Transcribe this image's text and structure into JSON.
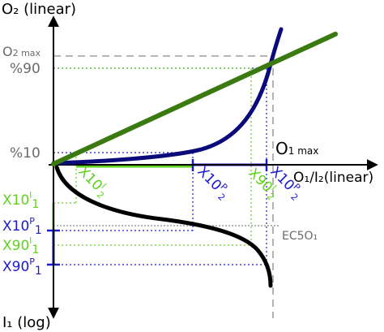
{
  "axes": {
    "y_axis_label": "O₂ (linear)",
    "x_axis_label": "O₁/I₂(linear)",
    "y_axis_bottom_label": "I₁ (log)"
  },
  "markers": {
    "o2max_prefix": "O",
    "o2max_sub": "2 max",
    "pct90": "%90",
    "pct10": "%10",
    "o1max_prefix": "O",
    "o1max_sub": "1 max",
    "ec50": "EC5O₁"
  },
  "threshold_labels": {
    "x10_l2": {
      "base": "X10",
      "sup": "l",
      "sub": "2"
    },
    "x10_p2": {
      "base": "X10",
      "sup": "P",
      "sub": "2"
    },
    "x90_l2": {
      "base": "X90",
      "sup": "l",
      "sub": "2"
    },
    "x10_p2_right": {
      "base": "X10",
      "sup": "P",
      "sub": "2"
    },
    "x10_l1": {
      "base": "X10",
      "sup": "l",
      "sub": "1"
    },
    "x10_p1": {
      "base": "X10",
      "sup": "P",
      "sub": "1"
    },
    "x90_l1": {
      "base": "X90",
      "sup": "l",
      "sub": "1"
    },
    "x90_p1": {
      "base": "X90",
      "sup": "P",
      "sub": "1"
    }
  },
  "colors": {
    "linear": "#3a7a10",
    "linear_range": "#5fd21e",
    "logistic": "#0a0a7a",
    "logistic_range": "#1a1ad0",
    "black": "#000000",
    "gray": "#6a6a6a"
  }
}
